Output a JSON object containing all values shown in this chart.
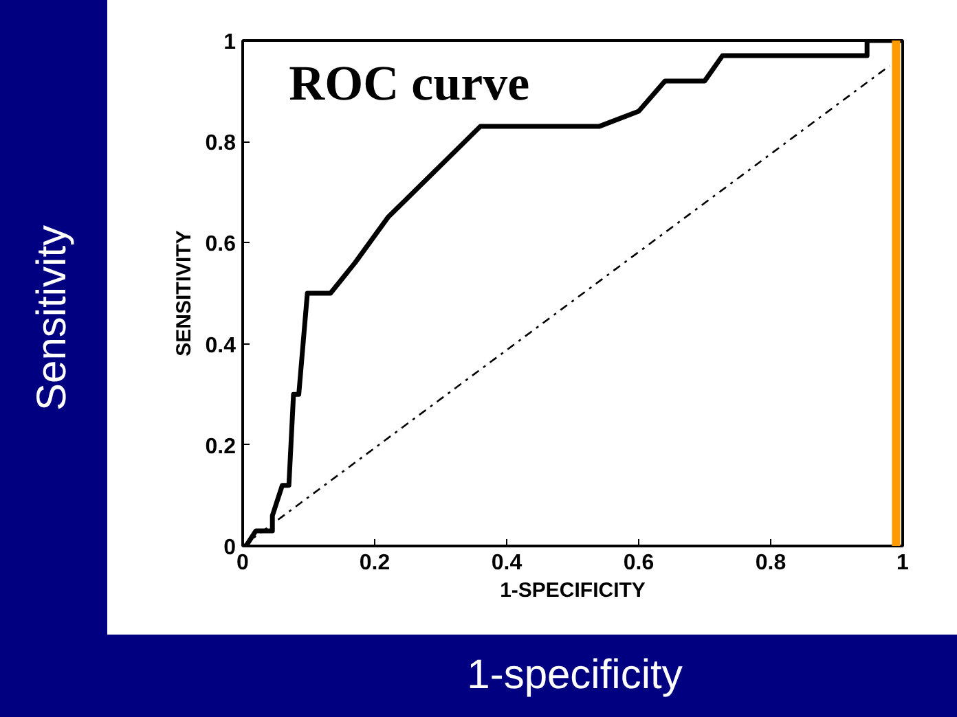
{
  "chart_data": {
    "type": "line",
    "title": "ROC curve",
    "xlabel": "1-SPECIFICITY",
    "ylabel": "SENSITIVITY",
    "annotations": [
      "Sensitivity",
      "1-specificity"
    ],
    "series": [
      {
        "color": "#000000",
        "x": [
          0.005,
          0.02,
          0.045,
          0.045,
          0.06,
          0.07,
          0.077,
          0.085,
          0.098,
          0.133,
          0.17,
          0.22,
          0.36,
          0.54,
          0.6,
          0.64,
          0.7,
          0.727,
          0.946,
          0.946,
          1
        ],
        "values": [
          0,
          0.03,
          0.03,
          0.06,
          0.12,
          0.12,
          0.3,
          0.3,
          0.5,
          0.5,
          0.56,
          0.65,
          0.83,
          0.83,
          0.86,
          0.92,
          0.92,
          0.97,
          0.97,
          1,
          1
        ]
      },
      {
        "color": "#000000",
        "line_style": "dashdot",
        "x": [
          0,
          0.98
        ],
        "values": [
          0,
          0.95
        ]
      }
    ],
    "ref_lines": [
      {
        "axis": "x",
        "value": 0.99,
        "label": null,
        "color": "#ff9900"
      }
    ],
    "xlim": [
      0,
      1
    ],
    "ylim": [
      0,
      1
    ],
    "xticks": [
      0,
      0.2,
      0.4,
      0.6,
      0.8,
      1
    ],
    "yticks": [
      0,
      0.2,
      0.4,
      0.6,
      0.8,
      1
    ],
    "grid": false
  }
}
